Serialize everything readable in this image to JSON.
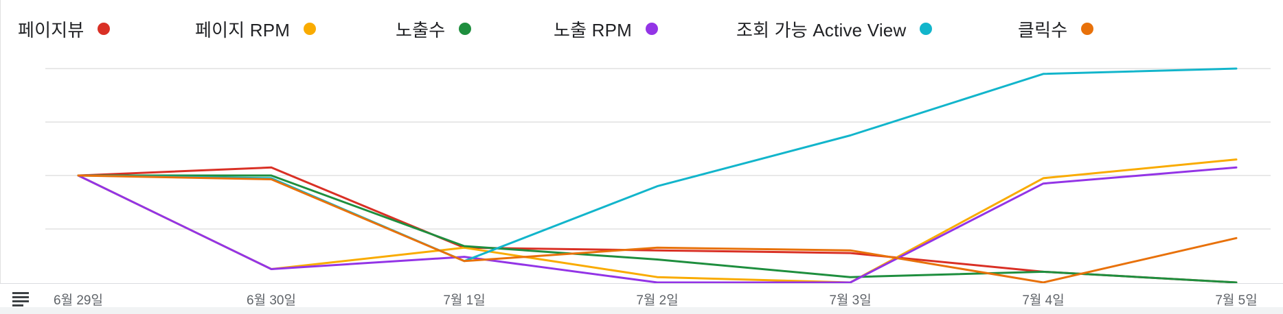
{
  "chart_data": {
    "type": "line",
    "title": "",
    "xlabel": "",
    "ylabel": "",
    "ylim": [
      0,
      4
    ],
    "grid": true,
    "legend_placement": "top",
    "categories": [
      "6월 29일",
      "6월 30일",
      "7월 1일",
      "7월 2일",
      "7월 3일",
      "7월 4일",
      "7월 5일"
    ],
    "series": [
      {
        "name": "페이지뷰",
        "color": "#d93025",
        "values": [
          2.0,
          2.15,
          0.65,
          0.6,
          0.55,
          0.2,
          0.0
        ]
      },
      {
        "name": "페이지 RPM",
        "color": "#f9ab00",
        "values": [
          2.0,
          0.25,
          0.65,
          0.1,
          0.0,
          1.95,
          2.3
        ]
      },
      {
        "name": "노출수",
        "color": "#1e8e3e",
        "values": [
          2.0,
          2.0,
          0.68,
          0.43,
          0.1,
          0.2,
          0.0
        ]
      },
      {
        "name": "노출 RPM",
        "color": "#9334e6",
        "values": [
          2.0,
          0.25,
          0.48,
          0.0,
          0.0,
          1.85,
          2.15
        ]
      },
      {
        "name": "조회 가능 Active View",
        "color": "#12b5cb",
        "values": [
          2.0,
          1.95,
          0.4,
          1.8,
          2.75,
          3.9,
          4.0
        ]
      },
      {
        "name": "클릭수",
        "color": "#e8710a",
        "values": [
          2.0,
          1.93,
          0.4,
          0.65,
          0.6,
          0.0,
          0.83
        ]
      }
    ]
  },
  "footer": {
    "table_toggle_icon": "table-lines-icon"
  }
}
